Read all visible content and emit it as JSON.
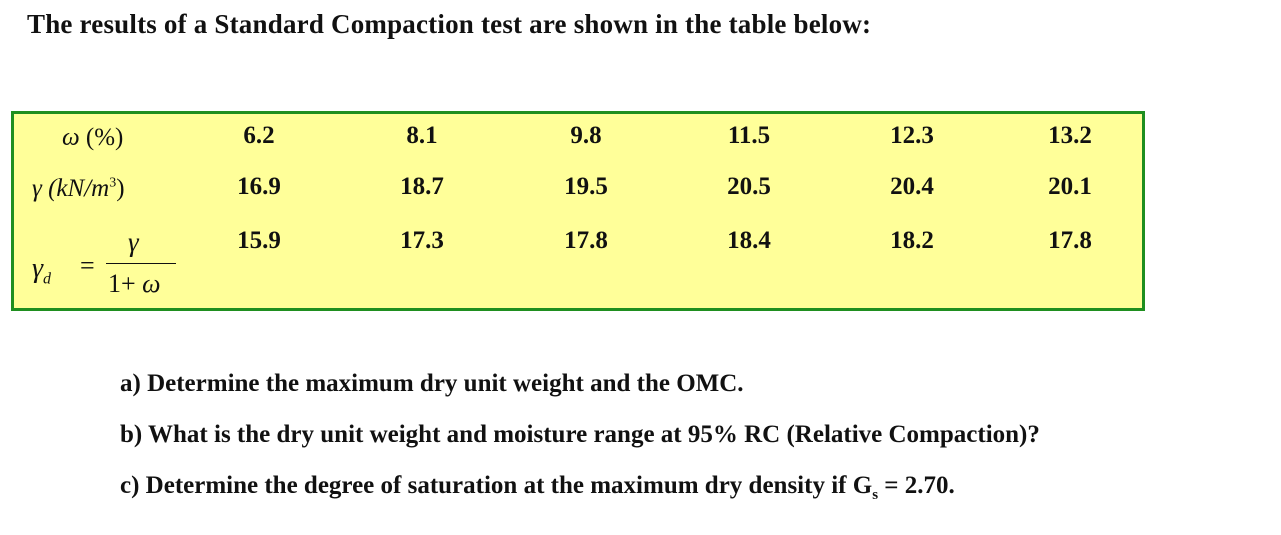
{
  "intro": "The results of a Standard Compaction test are shown in the table below:",
  "table": {
    "rows": [
      {
        "label_symbol": "ω",
        "label_unit": "(%)",
        "values": [
          "6.2",
          "8.1",
          "9.8",
          "11.5",
          "12.3",
          "13.2"
        ]
      },
      {
        "label_symbol": "γ",
        "label_unit_open": "(kN/m",
        "label_unit_sup": "3",
        "label_unit_close": ")",
        "values": [
          "16.9",
          "18.7",
          "19.5",
          "20.5",
          "20.4",
          "20.1"
        ]
      },
      {
        "label_lhs": "γ",
        "label_lhs_sub": "d",
        "label_eq": "=",
        "label_num": "γ",
        "label_den_one": "1+",
        "label_den_w": "ω",
        "values": [
          "15.9",
          "17.3",
          "17.8",
          "18.4",
          "18.2",
          "17.8"
        ]
      }
    ]
  },
  "questions": {
    "a": "a) Determine the maximum dry unit weight and the OMC.",
    "b": "b) What is the dry unit weight and moisture range at 95% RC (Relative Compaction)?",
    "c_pre": "c) Determine the degree of saturation at the maximum dry density if G",
    "c_sub": "s",
    "c_post": " = 2.70."
  },
  "colors": {
    "table_fill": "#ffff99",
    "table_border": "#1f8f1f"
  }
}
